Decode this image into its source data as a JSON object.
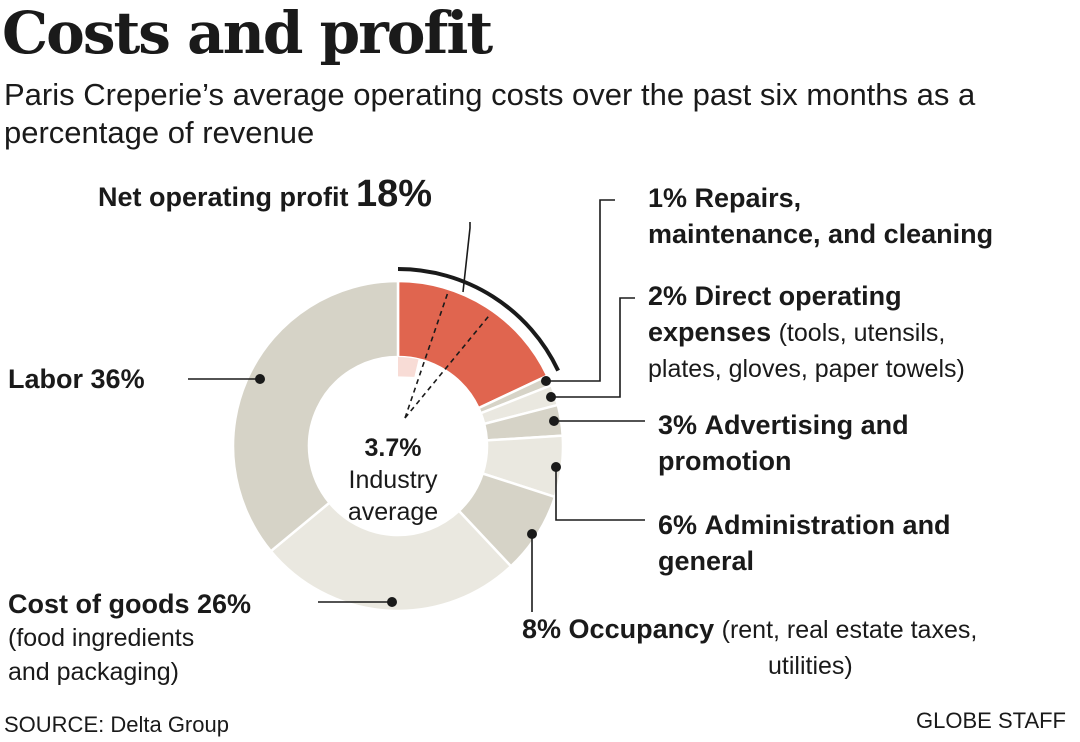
{
  "header": {
    "title": "Costs and profit",
    "subtitle": "Paris Creperie’s average operating costs over the past six months as a percentage of revenue"
  },
  "chart_data": {
    "type": "pie",
    "title": "Costs and profit",
    "subtitle": "Paris Creperie’s average operating costs over the past six months as a percentage of revenue",
    "unit": "%",
    "slices": [
      {
        "name": "Net operating profit",
        "value": 18,
        "color": "#e0654f"
      },
      {
        "name": "Repairs, maintenance, and cleaning",
        "value": 1,
        "color": "#d6d3c7"
      },
      {
        "name": "Direct operating expenses",
        "value": 2,
        "color": "#eae8e0"
      },
      {
        "name": "Advertising and promotion",
        "value": 3,
        "color": "#d6d3c7"
      },
      {
        "name": "Administration and general",
        "value": 6,
        "color": "#eae8e0"
      },
      {
        "name": "Occupancy",
        "value": 8,
        "color": "#d6d3c7"
      },
      {
        "name": "Cost of goods",
        "value": 26,
        "color": "#eae8e0"
      },
      {
        "name": "Labor",
        "value": 36,
        "color": "#d6d3c7"
      }
    ],
    "benchmark": {
      "value": 3.7,
      "label": "Industry average",
      "color": "#f8dcd6"
    }
  },
  "labels": {
    "profit_name": "Net operating profit",
    "profit_value": "18%",
    "repairs_value": "1%",
    "repairs_name_1": "Repairs,",
    "repairs_name_2": "maintenance, and cleaning",
    "direct_value": "2%",
    "direct_name_1": "Direct operating",
    "direct_name_2": "expenses",
    "direct_note_1": "(tools, utensils,",
    "direct_note_2": "plates, gloves, paper towels)",
    "adv_value": "3%",
    "adv_name_1": "Advertising and",
    "adv_name_2": "promotion",
    "admin_value": "6%",
    "admin_name_1": "Administration and",
    "admin_name_2": "general",
    "occ_value": "8%",
    "occ_name": "Occupancy",
    "occ_note_1": "(rent, real estate taxes,",
    "occ_note_2": "utilities)",
    "labor_name": "Labor",
    "labor_value": "36%",
    "cogs_name": "Cost of goods",
    "cogs_value": "26%",
    "cogs_note_1": "(food ingredients",
    "cogs_note_2": "and packaging)",
    "industry_value": "3.7%",
    "industry_line_1": "Industry",
    "industry_line_2": "average"
  },
  "footer": {
    "source": "SOURCE: Delta Group",
    "credit": "GLOBE STAFF"
  }
}
